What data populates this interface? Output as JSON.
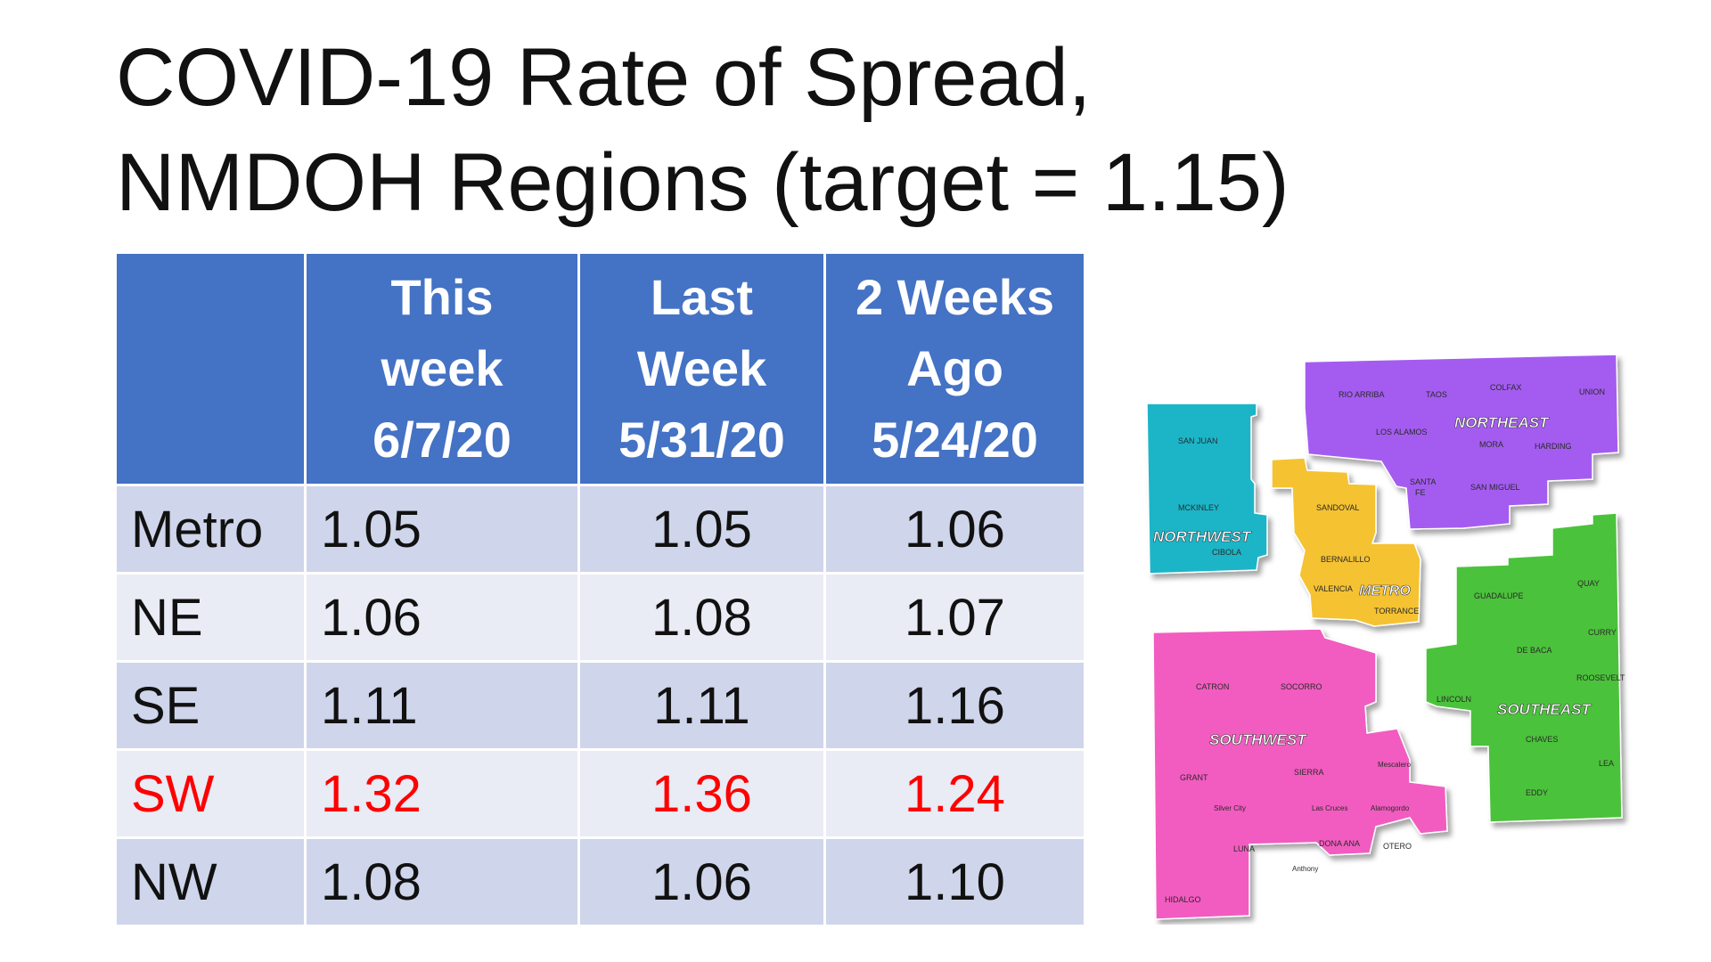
{
  "title": {
    "line1": "COVID-19 Rate of Spread,",
    "line2": "NMDOH Regions (target = 1.15)"
  },
  "table": {
    "headers": [
      [
        "This",
        "week",
        "6/7/20"
      ],
      [
        "Last",
        "Week",
        "5/31/20"
      ],
      [
        "2 Weeks",
        "Ago",
        "5/24/20"
      ]
    ],
    "rows": [
      {
        "region": "Metro",
        "this_week": "1.05",
        "last_week": "1.05",
        "two_weeks_ago": "1.06"
      },
      {
        "region": "NE",
        "this_week": "1.06",
        "last_week": "1.08",
        "two_weeks_ago": "1.07"
      },
      {
        "region": "SE",
        "this_week": "1.11",
        "last_week": "1.11",
        "two_weeks_ago": "1.16"
      },
      {
        "region": "SW",
        "this_week": "1.32",
        "last_week": "1.36",
        "two_weeks_ago": "1.24"
      },
      {
        "region": "NW",
        "this_week": "1.08",
        "last_week": "1.06",
        "two_weeks_ago": "1.10"
      }
    ],
    "highlight_color": "#ff0000",
    "header_color": "#4472c4"
  },
  "map": {
    "regions": [
      {
        "name": "NORTHWEST",
        "color": "#1fb5c8",
        "counties": [
          "SAN JUAN",
          "MCKINLEY",
          "CIBOLA"
        ]
      },
      {
        "name": "NORTHEAST",
        "color": "#a45cf0",
        "counties": [
          "RIO ARRIBA",
          "TAOS",
          "COLFAX",
          "UNION",
          "LOS ALAMOS",
          "MORA",
          "HARDING",
          "SANTA",
          "FE",
          "SAN MIGUEL"
        ]
      },
      {
        "name": "METRO",
        "color": "#f5c232",
        "counties": [
          "SANDOVAL",
          "BERNALILLO",
          "VALENCIA",
          "TORRANCE"
        ]
      },
      {
        "name": "SOUTHWEST",
        "color": "#f25cc0",
        "counties": [
          "CATRON",
          "SOCORRO",
          "GRANT",
          "SIERRA",
          "Silver City",
          "Las Cruces",
          "Alamogordo",
          "Mescalero",
          "LUNA",
          "DONA ANA",
          "OTERO",
          "HIDALGO",
          "Anthony"
        ]
      },
      {
        "name": "SOUTHEAST",
        "color": "#4cc23a",
        "counties": [
          "GUADALUPE",
          "QUAY",
          "CURRY",
          "DE BACA",
          "ROOSEVELT",
          "LINCOLN",
          "CHAVES",
          "LEA",
          "EDDY"
        ]
      }
    ]
  }
}
